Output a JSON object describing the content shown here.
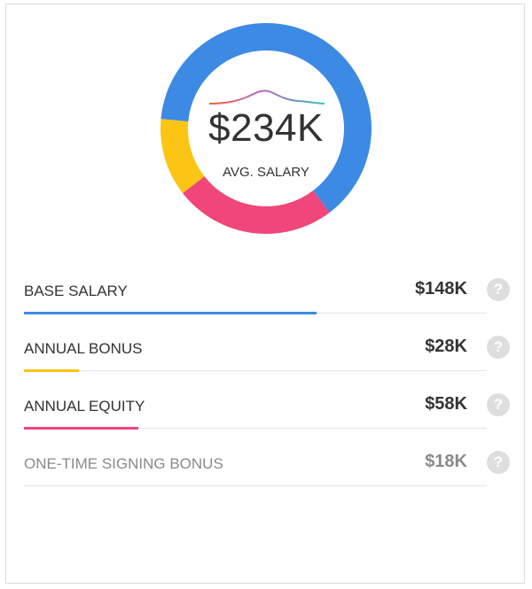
{
  "chart_data": {
    "type": "donut",
    "center_value": "$234K",
    "center_label": "AVG. SALARY",
    "series": [
      {
        "name": "BASE SALARY",
        "value": 148,
        "display": "$148K",
        "color": "#3d8ae4"
      },
      {
        "name": "ANNUAL BONUS",
        "value": 28,
        "display": "$28K",
        "color": "#fdc513"
      },
      {
        "name": "ANNUAL EQUITY",
        "value": 58,
        "display": "$58K",
        "color": "#f0467a"
      },
      {
        "name": "ONE-TIME SIGNING BONUS",
        "value": 18,
        "display": "$18K",
        "color": "#8a8a8a"
      }
    ],
    "donut_order": [
      "BASE SALARY",
      "ANNUAL EQUITY",
      "ANNUAL BONUS"
    ]
  },
  "help_icon": "question-circle-icon",
  "help_glyph": "?"
}
